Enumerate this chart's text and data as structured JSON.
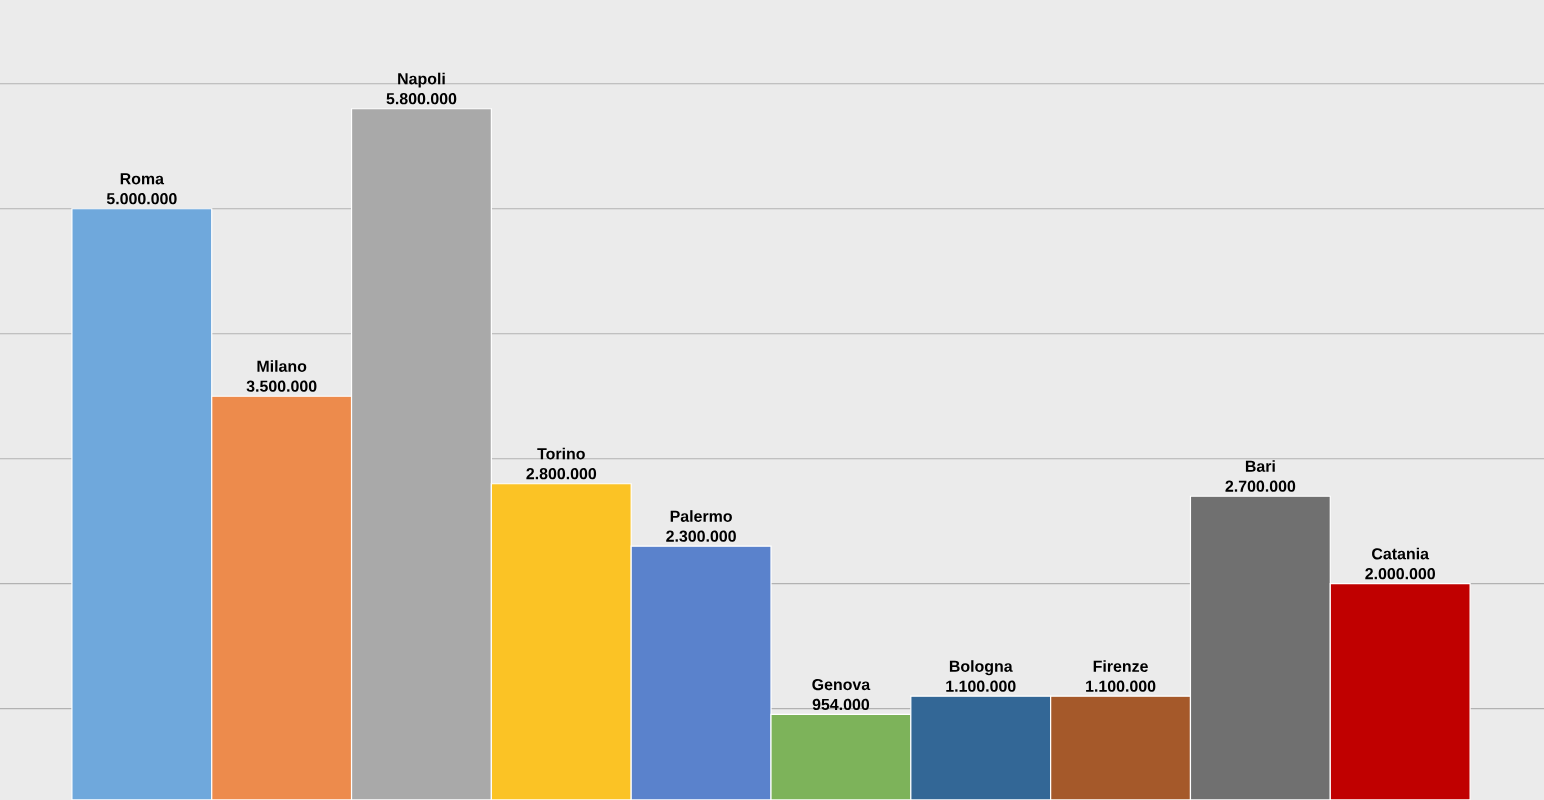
{
  "chart_data": {
    "type": "bar",
    "categories": [
      "Roma",
      "Milano",
      "Napoli",
      "Torino",
      "Palermo",
      "Genova",
      "Bologna",
      "Firenze",
      "Bari",
      "Catania"
    ],
    "values": [
      5000000,
      3500000,
      5800000,
      2800000,
      2300000,
      954000,
      1100000,
      1100000,
      2700000,
      2000000
    ],
    "value_labels": [
      "5.000.000",
      "3.500.000",
      "5.800.000",
      "2.800.000",
      "2.300.000",
      "954.000",
      "1.100.000",
      "1.100.000",
      "2.700.000",
      "2.000.000"
    ],
    "colors": [
      "#6fa8dc",
      "#ed8b4c",
      "#a9a9a9",
      "#fbc325",
      "#5a82cc",
      "#7db35a",
      "#336796",
      "#a5592a",
      "#707070",
      "#c00000"
    ],
    "ylim": [
      270000,
      6670000
    ],
    "yticks": [
      {
        "value": 1000000,
        "label": null
      },
      {
        "value": 2000000,
        "label": null
      },
      {
        "value": 3000000,
        "label": null
      },
      {
        "value": 4000000,
        "label": null
      },
      {
        "value": 5000000,
        "label": null
      },
      {
        "value": 6000000,
        "label": null
      }
    ],
    "grid": "y"
  }
}
